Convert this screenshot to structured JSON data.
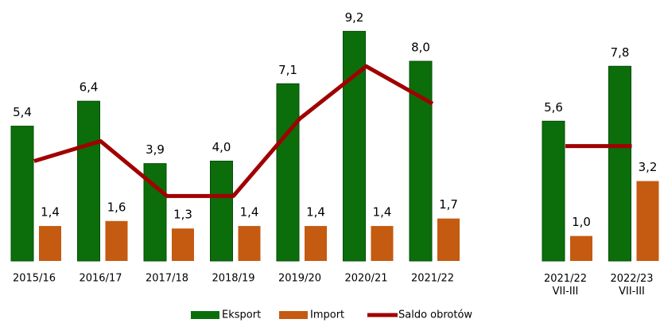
{
  "chart_data": {
    "type": "bar",
    "categories": [
      "2015/16",
      "2016/17",
      "2017/18",
      "2018/19",
      "2019/20",
      "2020/21",
      "2021/22",
      null,
      "2021/22 VII-III",
      "2022/23 VII-III"
    ],
    "series": [
      {
        "name": "Eksport",
        "type": "bar",
        "color": "#0b6e0b",
        "values": [
          5.4,
          6.4,
          3.9,
          4.0,
          7.1,
          9.2,
          8.0,
          null,
          5.6,
          7.8
        ],
        "value_labels": [
          "5,4",
          "6,4",
          "3,9",
          "4,0",
          "7,1",
          "9,2",
          "8,0",
          null,
          "5,6",
          "7,8"
        ]
      },
      {
        "name": "Import",
        "type": "bar",
        "color": "#c55a11",
        "values": [
          1.4,
          1.6,
          1.3,
          1.4,
          1.4,
          1.4,
          1.7,
          null,
          1.0,
          3.2
        ],
        "value_labels": [
          "1,4",
          "1,6",
          "1,3",
          "1,4",
          "1,4",
          "1,4",
          "1,7",
          null,
          "1,0",
          "3,2"
        ]
      },
      {
        "name": "Saldo obrotów",
        "type": "line",
        "color": "#a00000",
        "values": [
          4.0,
          4.8,
          2.6,
          2.6,
          5.7,
          7.8,
          6.3,
          null,
          4.6,
          4.6
        ]
      }
    ],
    "ylim": [
      0,
      10.2
    ],
    "legend": "bottom"
  }
}
